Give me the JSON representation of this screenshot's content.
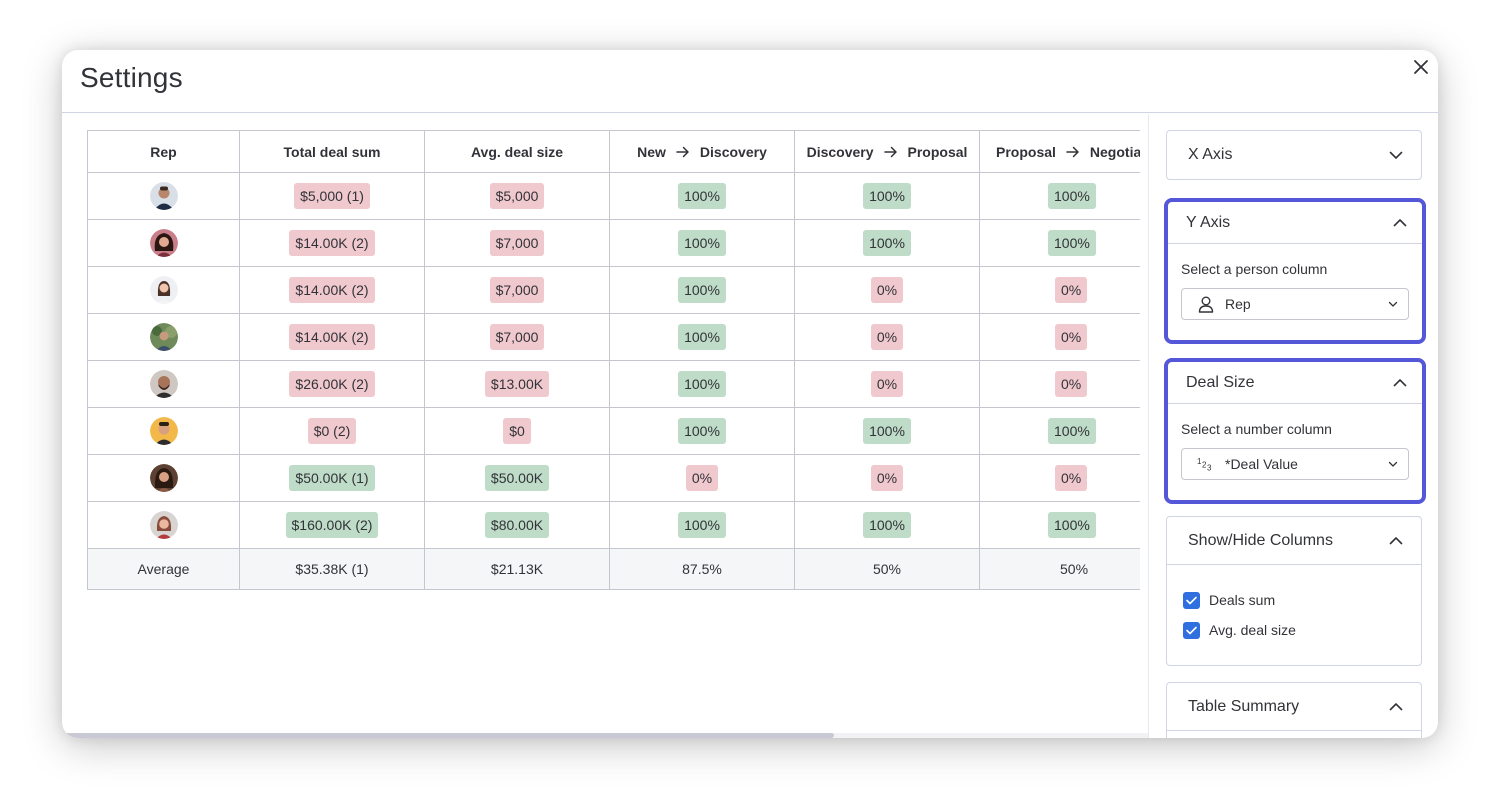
{
  "modal": {
    "title": "Settings"
  },
  "table": {
    "headers": {
      "rep": "Rep",
      "total_deal_sum": "Total deal sum",
      "avg_deal_size": "Avg. deal size",
      "stage1": {
        "from": "New",
        "to": "Discovery"
      },
      "stage2": {
        "from": "Discovery",
        "to": "Proposal"
      },
      "stage3": {
        "from": "Proposal",
        "to": "Negotia.."
      }
    },
    "rows": [
      {
        "total": "$5,000 (1)",
        "total_status": "red",
        "avg": "$5,000",
        "avg_status": "red",
        "s1": "100%",
        "s1_status": "green",
        "s2": "100%",
        "s2_status": "green",
        "s3": "100%",
        "s3_status": "green"
      },
      {
        "total": "$14.00K (2)",
        "total_status": "red",
        "avg": "$7,000",
        "avg_status": "red",
        "s1": "100%",
        "s1_status": "green",
        "s2": "100%",
        "s2_status": "green",
        "s3": "100%",
        "s3_status": "green"
      },
      {
        "total": "$14.00K (2)",
        "total_status": "red",
        "avg": "$7,000",
        "avg_status": "red",
        "s1": "100%",
        "s1_status": "green",
        "s2": "0%",
        "s2_status": "red",
        "s3": "0%",
        "s3_status": "red"
      },
      {
        "total": "$14.00K (2)",
        "total_status": "red",
        "avg": "$7,000",
        "avg_status": "red",
        "s1": "100%",
        "s1_status": "green",
        "s2": "0%",
        "s2_status": "red",
        "s3": "0%",
        "s3_status": "red"
      },
      {
        "total": "$26.00K (2)",
        "total_status": "red",
        "avg": "$13.00K",
        "avg_status": "red",
        "s1": "100%",
        "s1_status": "green",
        "s2": "0%",
        "s2_status": "red",
        "s3": "0%",
        "s3_status": "red"
      },
      {
        "total": "$0 (2)",
        "total_status": "red",
        "avg": "$0",
        "avg_status": "red",
        "s1": "100%",
        "s1_status": "green",
        "s2": "100%",
        "s2_status": "green",
        "s3": "100%",
        "s3_status": "green"
      },
      {
        "total": "$50.00K (1)",
        "total_status": "green",
        "avg": "$50.00K",
        "avg_status": "green",
        "s1": "0%",
        "s1_status": "red",
        "s2": "0%",
        "s2_status": "red",
        "s3": "0%",
        "s3_status": "red"
      },
      {
        "total": "$160.00K (2)",
        "total_status": "green",
        "avg": "$80.00K",
        "avg_status": "green",
        "s1": "100%",
        "s1_status": "green",
        "s2": "100%",
        "s2_status": "green",
        "s3": "100%",
        "s3_status": "green"
      }
    ],
    "average": {
      "label": "Average",
      "total": "$35.38K (1)",
      "avg": "$21.13K",
      "s1": "87.5%",
      "s2": "50%",
      "s3": "50%"
    }
  },
  "side_panel": {
    "x_axis": {
      "title": "X Axis"
    },
    "y_axis": {
      "title": "Y Axis",
      "field_label": "Select a person column",
      "selected": "Rep",
      "icon": "person-icon"
    },
    "deal_size": {
      "title": "Deal Size",
      "field_label": "Select a number column",
      "selected": "*Deal Value",
      "icon": "numbers-icon",
      "icon_text": "123"
    },
    "show_hide": {
      "title": "Show/Hide Columns",
      "options": [
        {
          "label": "Deals sum",
          "checked": true
        },
        {
          "label": "Avg. deal size",
          "checked": true
        }
      ]
    },
    "table_summary": {
      "title": "Table Summary"
    }
  },
  "colors": {
    "status_red": "#f0c9cf",
    "status_green": "#bfdcc8",
    "highlight_border": "#5357d8",
    "checkbox_blue": "#2f6fdf"
  }
}
